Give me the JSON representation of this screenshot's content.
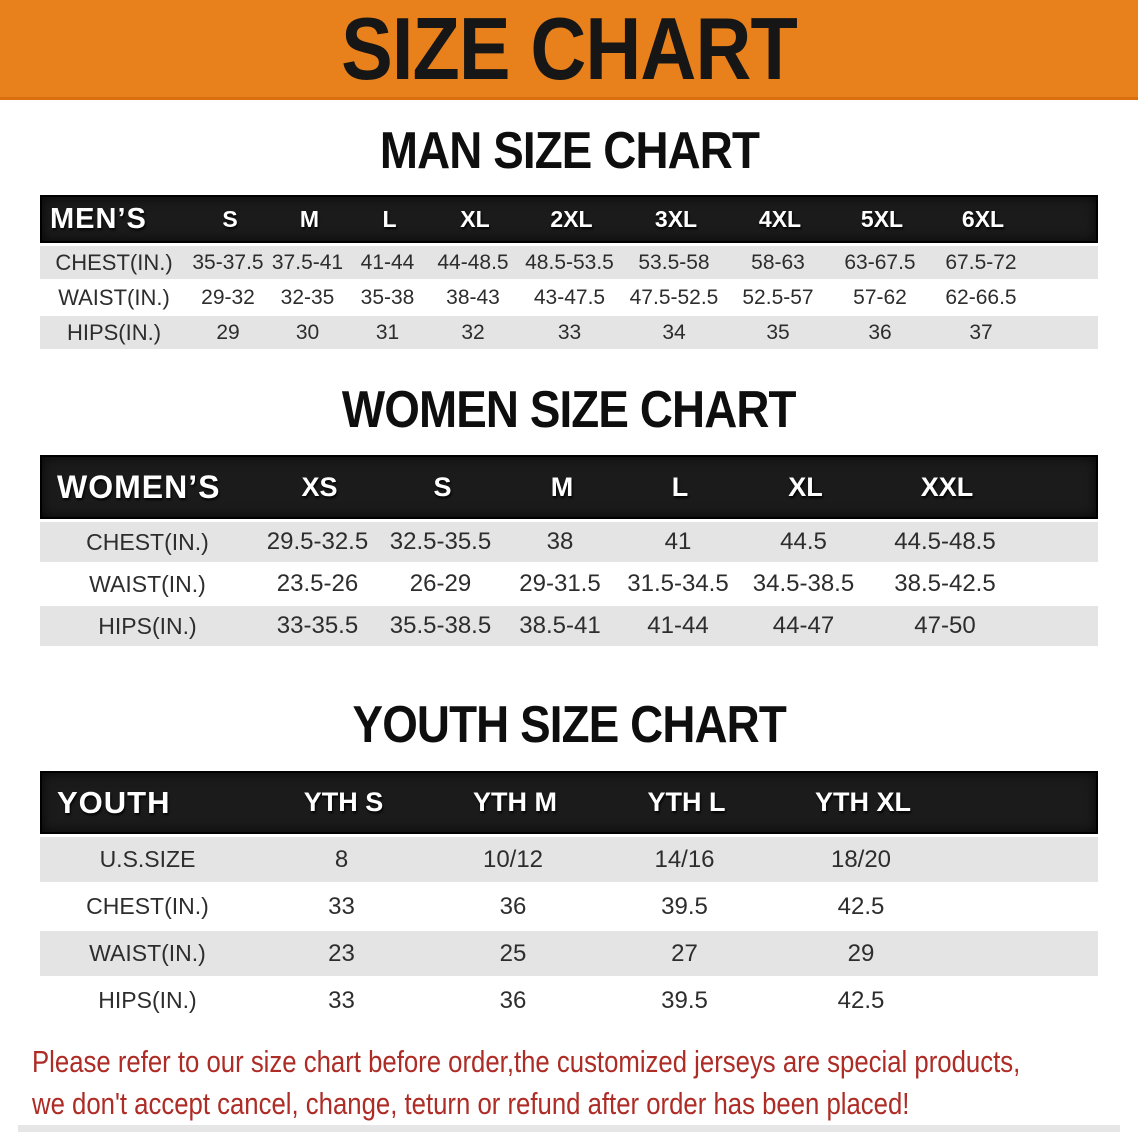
{
  "banner": {
    "title": "SIZE CHART",
    "bg_color": "#E8811B",
    "text_color": "#161616"
  },
  "colors": {
    "header_bar_bg": "#1b1b1b",
    "header_bar_text": "#ffffff",
    "striped_row_bg": "#E4E4E4",
    "row_text": "#2d2d2d",
    "disclaimer_text": "#AE2C26"
  },
  "sections": [
    {
      "heading": "MAN SIZE CHART",
      "table": {
        "label_header": "MEN’S",
        "size_headers": [
          "S",
          "M",
          "L",
          "XL",
          "2XL",
          "3XL",
          "4XL",
          "5XL",
          "6XL"
        ],
        "rows": [
          {
            "label": "CHEST(IN.)",
            "values": [
              "35-37.5",
              "37.5-41",
              "41-44",
              "44-48.5",
              "48.5-53.5",
              "53.5-58",
              "58-63",
              "63-67.5",
              "67.5-72"
            ]
          },
          {
            "label": "WAIST(IN.)",
            "values": [
              "29-32",
              "32-35",
              "35-38",
              "38-43",
              "43-47.5",
              "47.5-52.5",
              "52.5-57",
              "57-62",
              "62-66.5"
            ]
          },
          {
            "label": "HIPS(IN.)",
            "values": [
              "29",
              "30",
              "31",
              "32",
              "33",
              "34",
              "35",
              "36",
              "37"
            ]
          }
        ]
      }
    },
    {
      "heading": "WOMEN SIZE CHART",
      "table": {
        "label_header": "WOMEN’S",
        "size_headers": [
          "XS",
          "S",
          "M",
          "L",
          "XL",
          "XXL"
        ],
        "rows": [
          {
            "label": "CHEST(IN.)",
            "values": [
              "29.5-32.5",
              "32.5-35.5",
              "38",
              "41",
              "44.5",
              "44.5-48.5"
            ]
          },
          {
            "label": "WAIST(IN.)",
            "values": [
              "23.5-26",
              "26-29",
              "29-31.5",
              "31.5-34.5",
              "34.5-38.5",
              "38.5-42.5"
            ]
          },
          {
            "label": "HIPS(IN.)",
            "values": [
              "33-35.5",
              "35.5-38.5",
              "38.5-41",
              "41-44",
              "44-47",
              "47-50"
            ]
          }
        ]
      }
    },
    {
      "heading": "YOUTH SIZE CHART",
      "table": {
        "label_header": "YOUTH",
        "size_headers": [
          "YTH S",
          "YTH M",
          "YTH L",
          "YTH XL"
        ],
        "rows": [
          {
            "label": "U.S.SIZE",
            "values": [
              "8",
              "10/12",
              "14/16",
              "18/20"
            ]
          },
          {
            "label": "CHEST(IN.)",
            "values": [
              "33",
              "36",
              "39.5",
              "42.5"
            ]
          },
          {
            "label": "WAIST(IN.)",
            "values": [
              "23",
              "25",
              "27",
              "29"
            ]
          },
          {
            "label": "HIPS(IN.)",
            "values": [
              "33",
              "36",
              "39.5",
              "42.5"
            ]
          }
        ]
      }
    }
  ],
  "disclaimer": {
    "line1": "Please refer to our size chart before order,the customized jerseys are special products,",
    "line2": "we don't accept cancel, change, teturn or refund after order has been placed!"
  }
}
